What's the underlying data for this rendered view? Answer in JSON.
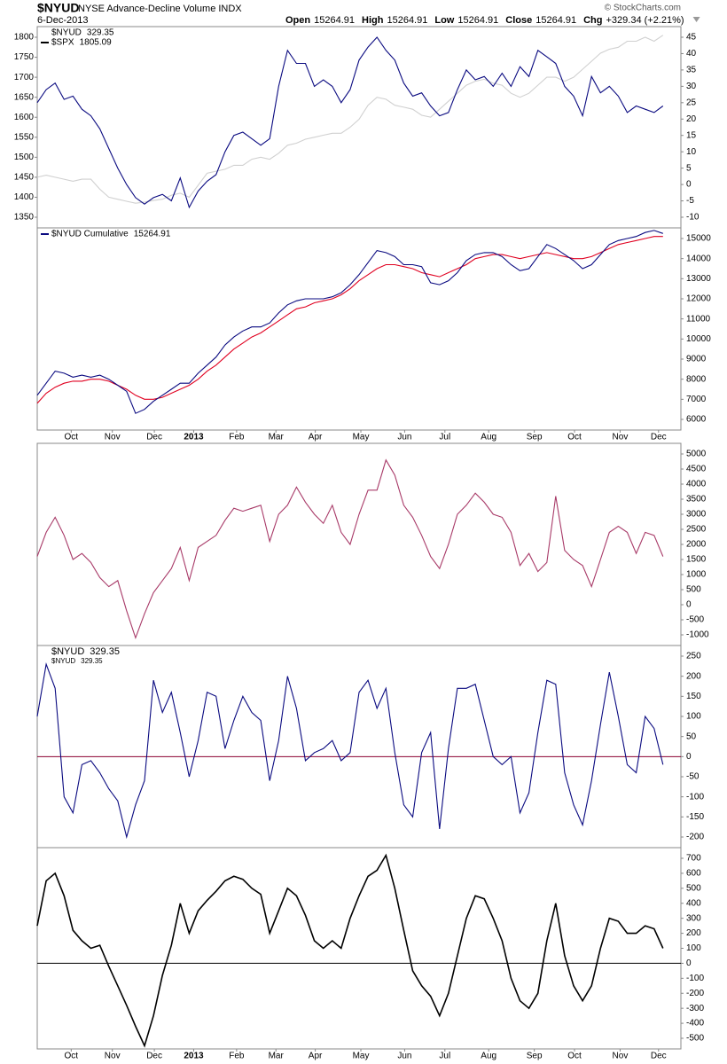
{
  "header": {
    "symbol": "$NYUD",
    "name": "NYSE Advance-Decline Volume INDX",
    "date": "6-Dec-2013",
    "copyright": "© StockCharts.com",
    "quote": [
      {
        "label": "Open",
        "value": 15264.91
      },
      {
        "label": "High",
        "value": 15264.91
      },
      {
        "label": "Low",
        "value": 15264.91
      },
      {
        "label": "Close",
        "value": 15264.91
      }
    ],
    "change": {
      "label": "Chg",
      "value": "+329.34 (+2.21%)"
    }
  },
  "chart_data": [
    {
      "type": "line",
      "xlim": [
        0,
        72
      ],
      "ylim": [
        1350,
        1800
      ],
      "yticks": [
        1350,
        1400,
        1450,
        1500,
        1550,
        1600,
        1650,
        1700,
        1750,
        1800
      ],
      "y2lim": [
        -10,
        45
      ],
      "y2ticks": [
        -10,
        -5,
        0,
        5,
        10,
        15,
        20,
        25,
        30,
        35,
        40,
        45
      ],
      "series": [
        {
          "name": "$NYUD",
          "last_value": 329.35,
          "color": "#0a0a80",
          "axis": "y2",
          "values": [
            25,
            29,
            31,
            26,
            27,
            23,
            21,
            17,
            11,
            5,
            0,
            -4,
            -6,
            -4,
            -3,
            -5,
            2,
            -7,
            -2,
            1,
            3,
            10,
            15,
            16,
            14,
            12,
            14,
            30,
            41,
            37,
            37,
            30,
            32,
            30,
            25,
            29,
            38,
            42,
            45,
            41,
            38,
            31,
            27,
            28,
            24,
            21,
            22,
            29,
            35,
            32,
            33,
            30,
            34,
            30,
            36,
            33,
            41,
            39,
            37,
            30,
            27,
            21,
            33,
            28,
            30,
            27,
            22,
            24,
            23,
            22,
            24
          ]
        },
        {
          "name": "$SPX",
          "last_value": 1805.09,
          "color": "#d0d0d0",
          "axis": "y",
          "values": [
            1450,
            1455,
            1450,
            1445,
            1440,
            1445,
            1445,
            1420,
            1400,
            1395,
            1390,
            1385,
            1388,
            1392,
            1395,
            1405,
            1410,
            1400,
            1430,
            1460,
            1465,
            1470,
            1480,
            1480,
            1495,
            1500,
            1495,
            1510,
            1530,
            1535,
            1545,
            1550,
            1555,
            1560,
            1560,
            1575,
            1595,
            1630,
            1650,
            1645,
            1630,
            1625,
            1620,
            1605,
            1600,
            1620,
            1640,
            1660,
            1680,
            1690,
            1695,
            1685,
            1680,
            1660,
            1650,
            1660,
            1680,
            1700,
            1700,
            1690,
            1700,
            1720,
            1740,
            1760,
            1770,
            1775,
            1790,
            1790,
            1800,
            1790,
            1805
          ]
        }
      ]
    },
    {
      "type": "line",
      "xlim": [
        0,
        72
      ],
      "y2lim": [
        6000,
        15000
      ],
      "y2ticks": [
        6000,
        7000,
        8000,
        9000,
        10000,
        11000,
        12000,
        13000,
        14000,
        15000
      ],
      "xticks": [
        {
          "value": 3.8,
          "label": "Oct"
        },
        {
          "value": 8.4,
          "label": "Nov"
        },
        {
          "value": 13.1,
          "label": "Dec"
        },
        {
          "value": 17.5,
          "label": "2013"
        },
        {
          "value": 22.3,
          "label": "Feb"
        },
        {
          "value": 26.7,
          "label": "Mar"
        },
        {
          "value": 31.1,
          "label": "Apr"
        },
        {
          "value": 36.2,
          "label": "May"
        },
        {
          "value": 41.1,
          "label": "Jun"
        },
        {
          "value": 45.6,
          "label": "Jul"
        },
        {
          "value": 50.5,
          "label": "Aug"
        },
        {
          "value": 55.6,
          "label": "Sep"
        },
        {
          "value": 60.1,
          "label": "Oct"
        },
        {
          "value": 65.2,
          "label": "Nov"
        },
        {
          "value": 69.5,
          "label": "Dec"
        }
      ],
      "series": [
        {
          "name": "$NYUD Cumulative",
          "last_value": 15264.91,
          "color": "#0a0a80",
          "axis": "y2",
          "values": [
            7200,
            7800,
            8400,
            8300,
            8100,
            8200,
            8100,
            8200,
            8000,
            7700,
            7400,
            6300,
            6500,
            6900,
            7200,
            7500,
            7800,
            7800,
            8300,
            8700,
            9100,
            9700,
            10100,
            10400,
            10600,
            10600,
            10800,
            11300,
            11700,
            11900,
            12000,
            12000,
            12000,
            12100,
            12300,
            12700,
            13200,
            13800,
            14400,
            14300,
            14100,
            13700,
            13700,
            13600,
            12800,
            12700,
            12900,
            13300,
            13900,
            14200,
            14300,
            14300,
            14100,
            13700,
            13400,
            13500,
            14100,
            14700,
            14500,
            14200,
            13900,
            13500,
            13700,
            14200,
            14700,
            14900,
            15000,
            15100,
            15300,
            15400,
            15250
          ]
        },
        {
          "color": "#e00020",
          "axis": "y2",
          "values": [
            6800,
            7300,
            7600,
            7800,
            7900,
            7900,
            8000,
            8000,
            7900,
            7700,
            7500,
            7200,
            7000,
            7000,
            7100,
            7300,
            7500,
            7700,
            8000,
            8400,
            8700,
            9100,
            9500,
            9800,
            10100,
            10300,
            10600,
            10900,
            11200,
            11500,
            11600,
            11800,
            11900,
            12000,
            12200,
            12500,
            12900,
            13200,
            13500,
            13700,
            13700,
            13600,
            13500,
            13300,
            13200,
            13100,
            13300,
            13500,
            13700,
            14000,
            14100,
            14200,
            14200,
            14100,
            14000,
            14100,
            14200,
            14300,
            14200,
            14100,
            14000,
            14000,
            14100,
            14300,
            14500,
            14700,
            14800,
            14900,
            15000,
            15100,
            15100
          ]
        }
      ]
    },
    {
      "type": "line",
      "xlim": [
        0,
        72
      ],
      "y2lim": [
        -1000,
        5000
      ],
      "y2ticks": [
        -1000,
        -500,
        0,
        500,
        1000,
        1500,
        2000,
        2500,
        3000,
        3500,
        4000,
        4500,
        5000
      ],
      "series": [
        {
          "color": "#a83a68",
          "axis": "y2",
          "values": [
            1600,
            2400,
            2900,
            2300,
            1500,
            1700,
            1400,
            900,
            600,
            800,
            -200,
            -1100,
            -300,
            400,
            800,
            1200,
            1900,
            800,
            1900,
            2100,
            2300,
            2800,
            3200,
            3100,
            3200,
            3300,
            2100,
            3000,
            3300,
            3900,
            3400,
            3000,
            2700,
            3300,
            2400,
            2000,
            3000,
            3800,
            3800,
            4800,
            4300,
            3300,
            2900,
            2300,
            1600,
            1200,
            2000,
            3000,
            3300,
            3700,
            3400,
            3000,
            2900,
            2400,
            1300,
            1700,
            1100,
            1400,
            3600,
            1800,
            1500,
            1300,
            600,
            1500,
            2400,
            2600,
            2400,
            1700,
            2400,
            2300,
            1600
          ]
        }
      ]
    },
    {
      "type": "line",
      "xlim": [
        0,
        72
      ],
      "label": "$NYUD",
      "label_value": 329.35,
      "y2lim": [
        -200,
        250
      ],
      "y2ticks": [
        -200,
        -150,
        -100,
        -50,
        0,
        50,
        100,
        150,
        200,
        250
      ],
      "reference_line": {
        "value": 0,
        "color": "#8b0030"
      },
      "series": [
        {
          "name": "$NYUD",
          "last_value": 329.35,
          "color": "#0a0a80",
          "axis": "y2",
          "values": [
            100,
            230,
            170,
            -100,
            -140,
            -20,
            -10,
            -40,
            -80,
            -110,
            -200,
            -120,
            -60,
            190,
            110,
            160,
            60,
            -50,
            40,
            160,
            150,
            20,
            90,
            150,
            110,
            90,
            -60,
            40,
            200,
            120,
            -10,
            10,
            20,
            40,
            -10,
            10,
            160,
            190,
            120,
            170,
            10,
            -120,
            -150,
            10,
            60,
            -180,
            20,
            170,
            170,
            180,
            90,
            0,
            -20,
            0,
            -140,
            -90,
            60,
            190,
            180,
            -40,
            -120,
            -170,
            -60,
            80,
            210,
            100,
            -20,
            -40,
            100,
            70,
            -20
          ]
        }
      ]
    },
    {
      "type": "line",
      "xlim": [
        0,
        72
      ],
      "y2lim": [
        -500,
        700
      ],
      "y2ticks": [
        -500,
        -400,
        -300,
        -200,
        -100,
        0,
        100,
        200,
        300,
        400,
        500,
        600,
        700
      ],
      "reference_line": {
        "value": 0,
        "color": "#000000"
      },
      "xticks": [
        {
          "value": 3.8,
          "label": "Oct"
        },
        {
          "value": 8.4,
          "label": "Nov"
        },
        {
          "value": 13.1,
          "label": "Dec"
        },
        {
          "value": 17.5,
          "label": "2013"
        },
        {
          "value": 22.3,
          "label": "Feb"
        },
        {
          "value": 26.7,
          "label": "Mar"
        },
        {
          "value": 31.1,
          "label": "Apr"
        },
        {
          "value": 36.2,
          "label": "May"
        },
        {
          "value": 41.1,
          "label": "Jun"
        },
        {
          "value": 45.6,
          "label": "Jul"
        },
        {
          "value": 50.5,
          "label": "Aug"
        },
        {
          "value": 55.6,
          "label": "Sep"
        },
        {
          "value": 60.1,
          "label": "Oct"
        },
        {
          "value": 65.2,
          "label": "Nov"
        },
        {
          "value": 69.5,
          "label": "Dec"
        }
      ],
      "series": [
        {
          "color": "#000000",
          "axis": "y2",
          "values": [
            250,
            550,
            600,
            450,
            220,
            150,
            100,
            120,
            -20,
            -150,
            -280,
            -420,
            -550,
            -350,
            -80,
            120,
            400,
            200,
            350,
            420,
            480,
            550,
            580,
            560,
            500,
            460,
            200,
            350,
            500,
            450,
            320,
            150,
            100,
            150,
            100,
            300,
            450,
            580,
            620,
            720,
            500,
            220,
            -50,
            -150,
            -220,
            -350,
            -200,
            50,
            300,
            450,
            430,
            300,
            150,
            -100,
            -250,
            -300,
            -200,
            150,
            400,
            50,
            -150,
            -250,
            -150,
            100,
            300,
            280,
            200,
            200,
            250,
            230,
            100
          ]
        }
      ]
    }
  ]
}
